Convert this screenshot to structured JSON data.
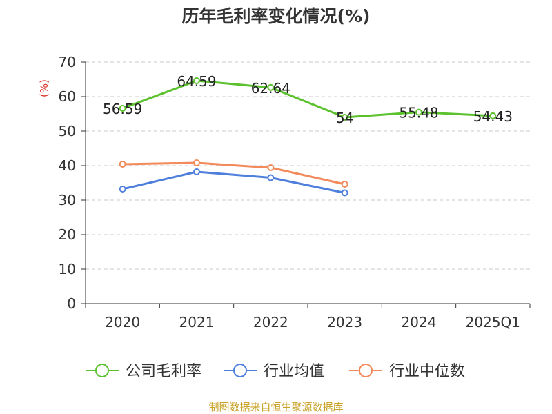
{
  "chart_data": {
    "type": "line",
    "title": "历年毛利率变化情况(%)",
    "ylabel": "(%)",
    "xlabel": "",
    "categories": [
      "2020",
      "2021",
      "2022",
      "2023",
      "2024",
      "2025Q1"
    ],
    "yticks": [
      "0",
      "10",
      "20",
      "30",
      "40",
      "50",
      "60",
      "70"
    ],
    "ylim": [
      0,
      70
    ],
    "grid": true,
    "legend_position": "bottom",
    "series": [
      {
        "name": "公司毛利率",
        "color": "#5cc12e",
        "values": [
          56.59,
          64.59,
          62.64,
          54,
          55.48,
          54.43
        ],
        "labels": [
          "56.59",
          "64.59",
          "62.64",
          "54",
          "55.48",
          "54.43"
        ]
      },
      {
        "name": "行业均值",
        "color": "#4f7fdc",
        "values": [
          33.2,
          38.2,
          36.5,
          32.1,
          null,
          null
        ]
      },
      {
        "name": "行业中位数",
        "color": "#f28a5b",
        "values": [
          40.4,
          40.8,
          39.4,
          34.6,
          null,
          null
        ]
      }
    ]
  },
  "source": "制图数据来自恒生聚源数据库"
}
